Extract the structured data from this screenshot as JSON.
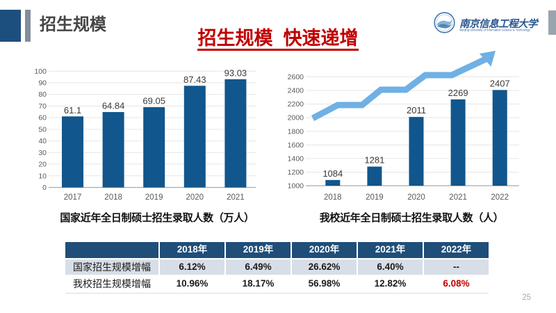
{
  "slide": {
    "header_title": "招生规模",
    "main_title": "招生规模  快速递增",
    "page_number": "25",
    "colors": {
      "accent_navy": "#1F4E79",
      "bar_blue": "#11568C",
      "arrow_blue": "#6FB0E5",
      "title_red": "#C00000",
      "grid_gray": "#E6E6E6",
      "axis_gray": "#A9A9A9"
    }
  },
  "logo": {
    "name_cn": "南京信息工程大学",
    "name_en": "Nanjing University of Information Science & Technology"
  },
  "chart_data": [
    {
      "type": "bar",
      "title": "国家近年全日制硕士招生录取人数（万人）",
      "categories": [
        "2017",
        "2018",
        "2019",
        "2020",
        "2021"
      ],
      "values": [
        61.1,
        64.84,
        69.05,
        87.43,
        93.03
      ],
      "ylim": [
        0,
        100
      ],
      "ytick": 10,
      "grid": true,
      "bar_color": "#11568C"
    },
    {
      "type": "bar",
      "title": "我校近年全日制硕士招生录取人数（人）",
      "categories": [
        "2018",
        "2019",
        "2020",
        "2021",
        "2022"
      ],
      "values": [
        1084,
        1281,
        2011,
        2269,
        2407
      ],
      "ylim": [
        1000,
        2600
      ],
      "ytick": 200,
      "grid": true,
      "bar_color": "#11568C",
      "annotation": "light-blue stepped upward trend arrow"
    }
  ],
  "table": {
    "col_headers": [
      "",
      "2018年",
      "2019年",
      "2020年",
      "2021年",
      "2022年"
    ],
    "rows": [
      {
        "label": "国家招生规模增幅",
        "values": [
          "6.12%",
          "6.49%",
          "26.62%",
          "6.40%",
          "--"
        ],
        "red": []
      },
      {
        "label": "我校招生规模增幅",
        "values": [
          "10.96%",
          "18.17%",
          "56.98%",
          "12.82%",
          "6.08%"
        ],
        "red": [
          4
        ]
      }
    ]
  }
}
